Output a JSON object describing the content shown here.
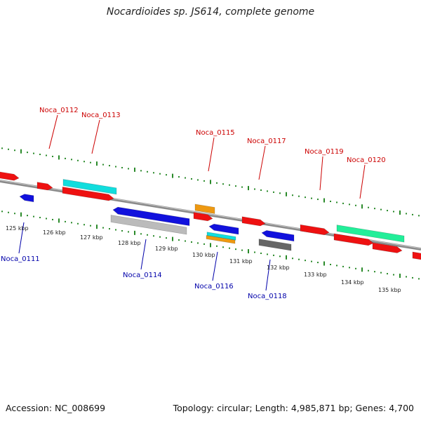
{
  "title": "Nocardioides sp. JS614, complete genome",
  "footer": {
    "accession": "Accession: NC_008699",
    "topology": "Topology: circular; Length: 4,985,871 bp; Genes: 4,700"
  },
  "colors": {
    "backbone": "#8a8a8a",
    "dots": "#2a8a2a",
    "label_forward": "#cc0000",
    "label_reverse": "#0000aa"
  },
  "ticks": [
    "125 kbp",
    "126 kbp",
    "127 kbp",
    "128 kbp",
    "129 kbp",
    "130 kbp",
    "131 kbp",
    "132 kbp",
    "133 kbp",
    "134 kbp",
    "135 kbp"
  ],
  "labels": [
    {
      "text": "Noca_0111",
      "strand": "reverse"
    },
    {
      "text": "Noca_0112",
      "strand": "forward"
    },
    {
      "text": "Noca_0113",
      "strand": "forward"
    },
    {
      "text": "Noca_0114",
      "strand": "reverse"
    },
    {
      "text": "Noca_0115",
      "strand": "forward"
    },
    {
      "text": "Noca_0116",
      "strand": "reverse"
    },
    {
      "text": "Noca_0117",
      "strand": "forward"
    },
    {
      "text": "Noca_0118",
      "strand": "reverse"
    },
    {
      "text": "Noca_0119",
      "strand": "forward"
    },
    {
      "text": "Noca_0120",
      "strand": "forward"
    }
  ]
}
